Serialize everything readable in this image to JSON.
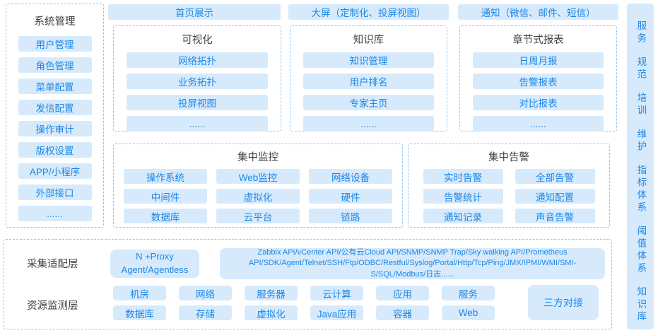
{
  "colors": {
    "accent_text": "#1b87e6",
    "button_bg": "#d7eafc",
    "dashed_border": "#8ec6f1",
    "header_text": "#3f4245",
    "bar_bg": "#d7eafc"
  },
  "system_panel": {
    "title": "系统管理",
    "items": [
      "用户管理",
      "角色管理",
      "菜单配置",
      "发信配置",
      "操作审计",
      "版权设置",
      "APP/小程序",
      "外部接口",
      "......"
    ]
  },
  "top_buttons": [
    "首页展示",
    "大屏（定制化、投屏视图）",
    "通知（微信、邮件、短信）"
  ],
  "feature_boxes": [
    {
      "title": "可视化",
      "items": [
        "网络拓扑",
        "业务拓扑",
        "投屏视图",
        "......"
      ]
    },
    {
      "title": "知识库",
      "items": [
        "知识管理",
        "用户排名",
        "专家主页",
        "......"
      ]
    },
    {
      "title": "章节式报表",
      "items": [
        "日周月报",
        "告警报表",
        "对比报表",
        "......"
      ]
    }
  ],
  "central_monitoring": {
    "title": "集中监控",
    "items": [
      "操作系统",
      "Web监控",
      "网络设备",
      "中间件",
      "虚拟化",
      "硬件",
      "数据库",
      "云平台",
      "链路"
    ]
  },
  "central_alerting": {
    "title": "集中告警",
    "items": [
      "实时告警",
      "全部告警",
      "告警统计",
      "通知配置",
      "通知记录",
      "声音告警"
    ]
  },
  "collection_layer": {
    "label": "采集适配层",
    "proxy_button": "N +Proxy Agent/Agentless",
    "api_button": "Zabbix API/vCenter API/公有云Cloud API/SNMP/SNMP Trap/Sky walking API/Prometheus API/SDK/Agent/Telnet/SSH/Ftp/ODBC/Restful/Syslog/Portal/Http/Tcp/Ping/JMX/IPMI/WMI/SMI-S/SQL/Modbus/日志......"
  },
  "resource_layer": {
    "label": "资源监测层",
    "row1": [
      "机房",
      "网络",
      "服务器",
      "云计算",
      "应用",
      "服务"
    ],
    "row2": [
      "数据库",
      "存储",
      "虚拟化",
      "Java应用",
      "容器",
      "Web"
    ],
    "side_button": "三方对接"
  },
  "service_bar": {
    "items": [
      "服务",
      "规范",
      "培训",
      "维护",
      "指标体系",
      "阈值体系",
      "知识库"
    ]
  }
}
